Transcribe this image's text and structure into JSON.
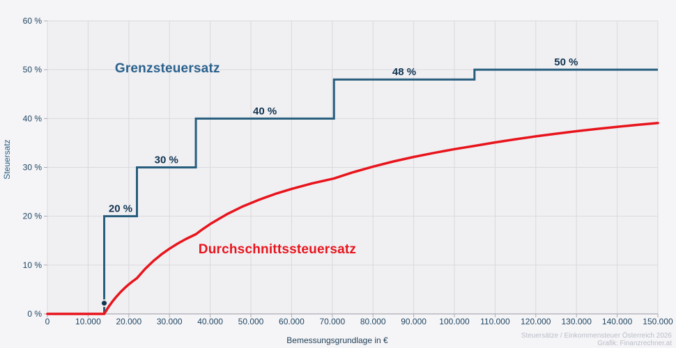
{
  "chart_data": {
    "type": "line",
    "xlabel": "Bemessungsgrundlage in €",
    "ylabel": "Steuersatz",
    "x_range": [
      0,
      150000
    ],
    "y_range": [
      0,
      60
    ],
    "grid": true,
    "legend": "inline-annotations",
    "x_ticks": [
      {
        "value": 0,
        "label": "0"
      },
      {
        "value": 10000,
        "label": "10.000"
      },
      {
        "value": 20000,
        "label": "20.000"
      },
      {
        "value": 30000,
        "label": "30.000"
      },
      {
        "value": 40000,
        "label": "40.000"
      },
      {
        "value": 50000,
        "label": "50.000"
      },
      {
        "value": 60000,
        "label": "60.000"
      },
      {
        "value": 70000,
        "label": "70.000"
      },
      {
        "value": 80000,
        "label": "80.000"
      },
      {
        "value": 90000,
        "label": "90.000"
      },
      {
        "value": 100000,
        "label": "100.000"
      },
      {
        "value": 110000,
        "label": "110.000"
      },
      {
        "value": 120000,
        "label": "120.000"
      },
      {
        "value": 130000,
        "label": "130.000"
      },
      {
        "value": 140000,
        "label": "140.000"
      },
      {
        "value": 150000,
        "label": "150.000"
      }
    ],
    "y_ticks": [
      {
        "value": 0,
        "label": "0 %"
      },
      {
        "value": 10,
        "label": "10 %"
      },
      {
        "value": 20,
        "label": "20 %"
      },
      {
        "value": 30,
        "label": "30 %"
      },
      {
        "value": 40,
        "label": "40 %"
      },
      {
        "value": 50,
        "label": "50 %"
      },
      {
        "value": 60,
        "label": "60 %"
      }
    ],
    "series": [
      {
        "name": "Grenzsteuersatz",
        "type": "step",
        "color": "#275d7c",
        "label_pos": {
          "x": 29500,
          "y": 50.2
        },
        "brackets": [
          {
            "from": 0,
            "to": 13960,
            "rate": 0,
            "label": ""
          },
          {
            "from": 13960,
            "to": 22004,
            "rate": 20,
            "label": "20 %"
          },
          {
            "from": 22004,
            "to": 36482,
            "rate": 30,
            "label": "30 %"
          },
          {
            "from": 36482,
            "to": 70417,
            "rate": 40,
            "label": "40 %"
          },
          {
            "from": 70417,
            "to": 104935,
            "rate": 48,
            "label": "48 %"
          },
          {
            "from": 104935,
            "to": 150000,
            "rate": 50,
            "label": "50 %"
          }
        ],
        "start_marker": {
          "x": 13960,
          "y": 2.2
        }
      },
      {
        "name": "Durchschnittssteuersatz",
        "type": "line",
        "color": "#e8141c",
        "label_pos": {
          "x": 56500,
          "y": 13.1
        },
        "points": [
          [
            0,
            0
          ],
          [
            5000,
            0
          ],
          [
            10000,
            0
          ],
          [
            13960,
            0
          ],
          [
            14500,
            0.74
          ],
          [
            15000,
            1.39
          ],
          [
            16000,
            2.55
          ],
          [
            17000,
            3.58
          ],
          [
            18000,
            4.49
          ],
          [
            19000,
            5.31
          ],
          [
            20000,
            6.04
          ],
          [
            21000,
            6.7
          ],
          [
            22004,
            7.31
          ],
          [
            24000,
            9.2
          ],
          [
            26000,
            10.8
          ],
          [
            28000,
            12.17
          ],
          [
            30000,
            13.36
          ],
          [
            32000,
            14.4
          ],
          [
            34000,
            15.32
          ],
          [
            36482,
            16.32
          ],
          [
            38000,
            17.26
          ],
          [
            40000,
            18.4
          ],
          [
            44000,
            20.36
          ],
          [
            48000,
            22.0
          ],
          [
            52000,
            23.38
          ],
          [
            56000,
            24.57
          ],
          [
            60000,
            25.6
          ],
          [
            65000,
            26.71
          ],
          [
            70417,
            27.73
          ],
          [
            75000,
            28.97
          ],
          [
            80000,
            30.16
          ],
          [
            85000,
            31.21
          ],
          [
            90000,
            32.14
          ],
          [
            95000,
            32.97
          ],
          [
            100000,
            33.73
          ],
          [
            104935,
            34.4
          ],
          [
            110000,
            35.12
          ],
          [
            115000,
            35.76
          ],
          [
            120000,
            36.36
          ],
          [
            125000,
            36.9
          ],
          [
            130000,
            37.41
          ],
          [
            135000,
            37.87
          ],
          [
            140000,
            38.31
          ],
          [
            145000,
            38.71
          ],
          [
            150000,
            39.08
          ]
        ]
      }
    ],
    "attribution": [
      "Steuersätze / Einkommensteuer Österreich 2026",
      "Grafik: Finanzrechner.at"
    ]
  },
  "style": {
    "background": "#f5f5f8",
    "plot_background": "#f0f0f3",
    "grid_color": "#d9d9de",
    "axis_color": "#a9a9b2",
    "tick_label_color": "#20455f",
    "step_label_color": "#0f3350",
    "x_title_color": "#1d3c53",
    "y_title_color": "#2b5e80",
    "attribution_color": "#b9bdc6",
    "marker_fill": "#12344e",
    "marker_ring": "#eceaf0"
  }
}
